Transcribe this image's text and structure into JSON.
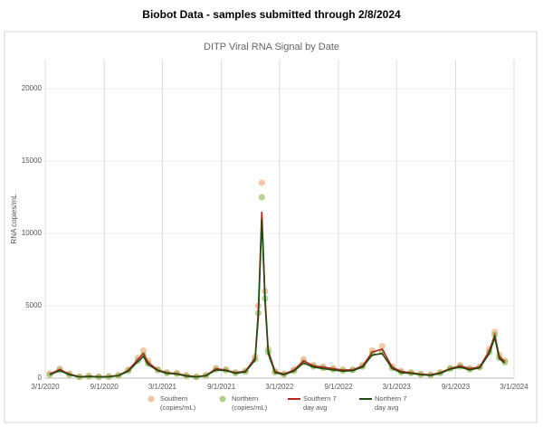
{
  "page_title": "Biobot Data - samples submitted through 2/8/2024",
  "chart_data": {
    "type": "scatter",
    "title": "DITP Viral RNA Signal by Date",
    "y_label": "RNA copies/mL",
    "x": [
      "3/15/2020",
      "4/15/2020",
      "5/15/2020",
      "6/15/2020",
      "7/15/2020",
      "8/15/2020",
      "9/15/2020",
      "10/15/2020",
      "11/15/2020",
      "12/15/2020",
      "1/1/2021",
      "1/15/2021",
      "2/15/2021",
      "3/15/2021",
      "4/15/2021",
      "5/15/2021",
      "6/15/2021",
      "7/15/2021",
      "8/15/2021",
      "9/15/2021",
      "10/15/2021",
      "11/15/2021",
      "12/15/2021",
      "12/25/2021",
      "1/5/2022",
      "1/15/2022",
      "1/25/2022",
      "2/15/2022",
      "3/15/2022",
      "4/15/2022",
      "5/15/2022",
      "6/15/2022",
      "7/15/2022",
      "8/15/2022",
      "9/15/2022",
      "10/15/2022",
      "11/15/2022",
      "12/15/2022",
      "1/15/2023",
      "2/15/2023",
      "3/15/2023",
      "4/15/2023",
      "5/15/2023",
      "6/15/2023",
      "7/15/2023",
      "8/15/2023",
      "9/15/2023",
      "10/15/2023",
      "11/15/2023",
      "12/15/2023",
      "1/1/2024",
      "1/15/2024",
      "2/1/2024"
    ],
    "series": [
      {
        "name": "Southern (copies/mL)",
        "type": "scatter",
        "color": "#f0a878",
        "values": [
          300,
          650,
          300,
          100,
          150,
          100,
          120,
          200,
          600,
          1400,
          1900,
          1200,
          600,
          400,
          350,
          200,
          100,
          200,
          700,
          600,
          400,
          500,
          1500,
          5000,
          13500,
          6000,
          2000,
          500,
          300,
          600,
          1300,
          900,
          800,
          700,
          600,
          600,
          900,
          1900,
          2200,
          800,
          500,
          400,
          300,
          250,
          400,
          700,
          900,
          700,
          800,
          2000,
          3200,
          1600,
          1200
        ]
      },
      {
        "name": "Northern (copies/mL)",
        "type": "scatter",
        "color": "#8fbf5a",
        "values": [
          250,
          550,
          250,
          80,
          120,
          90,
          100,
          180,
          500,
          1200,
          1600,
          1000,
          550,
          350,
          300,
          150,
          80,
          180,
          600,
          550,
          350,
          450,
          1300,
          4500,
          12500,
          5500,
          1800,
          400,
          250,
          500,
          1100,
          800,
          700,
          600,
          500,
          550,
          800,
          1700,
          1800,
          700,
          400,
          350,
          250,
          200,
          350,
          650,
          800,
          600,
          750,
          1800,
          3000,
          1400,
          1100
        ]
      },
      {
        "name": "Southern 7 day avg",
        "type": "line",
        "color": "#b3261e",
        "values": [
          280,
          600,
          280,
          100,
          130,
          100,
          110,
          190,
          550,
          1300,
          1700,
          1100,
          560,
          380,
          320,
          180,
          100,
          190,
          650,
          560,
          380,
          480,
          1400,
          4600,
          11500,
          5600,
          1900,
          460,
          280,
          560,
          1200,
          850,
          760,
          650,
          560,
          570,
          850,
          1800,
          2000,
          760,
          460,
          380,
          280,
          230,
          380,
          660,
          850,
          660,
          770,
          1900,
          3000,
          1500,
          1150
        ]
      },
      {
        "name": "Northern 7 day avg",
        "type": "line",
        "color": "#1e4d0f",
        "values": [
          240,
          520,
          240,
          80,
          110,
          90,
          95,
          170,
          480,
          1150,
          1500,
          950,
          520,
          330,
          280,
          140,
          80,
          170,
          570,
          520,
          330,
          430,
          1250,
          4200,
          11000,
          5200,
          1700,
          380,
          240,
          480,
          1050,
          760,
          660,
          570,
          480,
          520,
          760,
          1600,
          1700,
          660,
          380,
          330,
          240,
          190,
          330,
          620,
          760,
          570,
          720,
          1700,
          2800,
          1350,
          1050
        ]
      }
    ],
    "xlim": [
      "3/1/2020",
      "3/1/2024"
    ],
    "xticks": [
      "3/1/2020",
      "9/1/2020",
      "3/1/2021",
      "9/1/2021",
      "3/1/2022",
      "9/1/2022",
      "3/1/2023",
      "9/1/2023",
      "3/1/2024"
    ],
    "ylim": [
      0,
      22000
    ],
    "yticks": [
      0,
      5000,
      10000,
      15000,
      20000
    ],
    "grid": true
  }
}
